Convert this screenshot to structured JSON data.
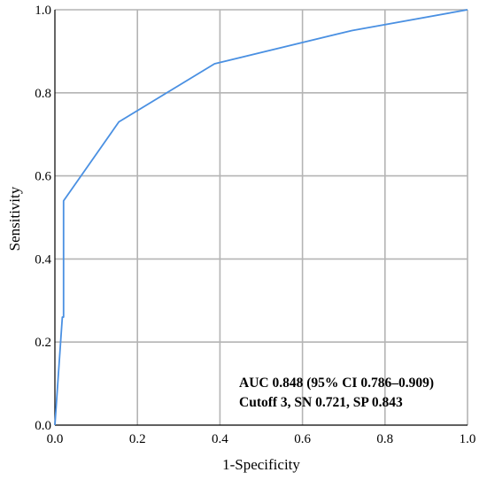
{
  "chart_data": {
    "type": "line",
    "title": "",
    "xlabel": "1-Specificity",
    "ylabel": "Sensitivity",
    "xlim": [
      0,
      1
    ],
    "ylim": [
      0,
      1
    ],
    "x_ticks": [
      "0.0",
      "0.2",
      "0.4",
      "0.6",
      "0.8",
      "1.0"
    ],
    "y_ticks": [
      "0.0",
      "0.2",
      "0.4",
      "0.6",
      "0.8",
      "1.0"
    ],
    "grid": true,
    "legend": "none",
    "series": [
      {
        "x": [
          0.0,
          0.018,
          0.021,
          0.021,
          0.155,
          0.387,
          0.72,
          1.0
        ],
        "y": [
          0.0,
          0.26,
          0.26,
          0.54,
          0.73,
          0.87,
          0.95,
          1.0
        ]
      }
    ],
    "annotations": [
      "AUC 0.848 (95% CI 0.786–0.909)",
      "Cutoff 3, SN 0.721, SP 0.843"
    ],
    "colors": {
      "line": "#4a90e2",
      "grid": "#b4b4b4",
      "axis": "#000000"
    }
  }
}
